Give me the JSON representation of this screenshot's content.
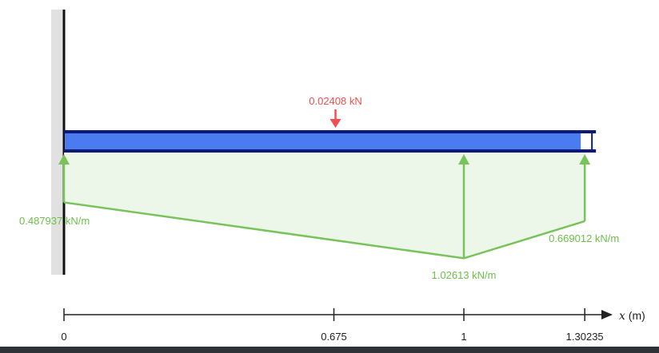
{
  "colors": {
    "support": "#e1e1e1",
    "beam_fill": "#4a7cf0",
    "beam_edge": "#0d1a7a",
    "load": "#79c35b",
    "load_fill": "#edf7e9",
    "point_load": "#f0504f",
    "axis": "#222222"
  },
  "beam": {
    "length": 1.30235
  },
  "point_load": {
    "label": "0.02408 kN",
    "x": 0.675
  },
  "distributed_load": {
    "points": [
      {
        "x": 0,
        "value": 0.487937,
        "label": "0.487937 kN/m"
      },
      {
        "x": 1,
        "value": 1.02613,
        "label": "1.02613 kN/m"
      },
      {
        "x": 1.30235,
        "value": 0.669012,
        "label": "0.669012 kN/m"
      }
    ]
  },
  "axis": {
    "label_var": "x",
    "label_unit": "(m)",
    "ticks": [
      {
        "value": 0,
        "label": "0"
      },
      {
        "value": 0.675,
        "label": "0.675"
      },
      {
        "value": 1,
        "label": "1"
      },
      {
        "value": 1.30235,
        "label": "1.30235"
      }
    ]
  }
}
